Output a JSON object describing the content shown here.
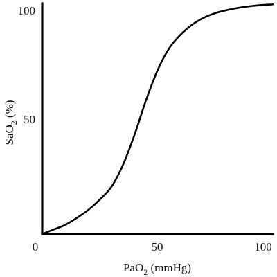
{
  "chart_data": {
    "type": "line",
    "title": "",
    "xlabel_main": "PaO",
    "xlabel_sub": "2",
    "xlabel_unit": " (mmHg)",
    "ylabel_main": "SaO",
    "ylabel_sub": "2",
    "ylabel_unit": " (%)",
    "xlim": [
      0,
      100
    ],
    "ylim": [
      0,
      100
    ],
    "x_ticks": [
      "0",
      "50",
      "100"
    ],
    "y_ticks": [
      "100",
      "50"
    ],
    "grid": false,
    "series": [
      {
        "x": [
          0,
          5,
          10,
          15,
          20,
          25,
          30,
          35,
          40,
          45,
          50,
          55,
          60,
          65,
          70,
          75,
          80,
          85,
          90,
          95,
          100
        ],
        "y": [
          0,
          2,
          4,
          7,
          10.5,
          15,
          20.5,
          30,
          43,
          58,
          71,
          80.5,
          86.5,
          90.8,
          93.8,
          95.8,
          97.1,
          98.1,
          98.8,
          99.3,
          99.6
        ]
      }
    ]
  }
}
